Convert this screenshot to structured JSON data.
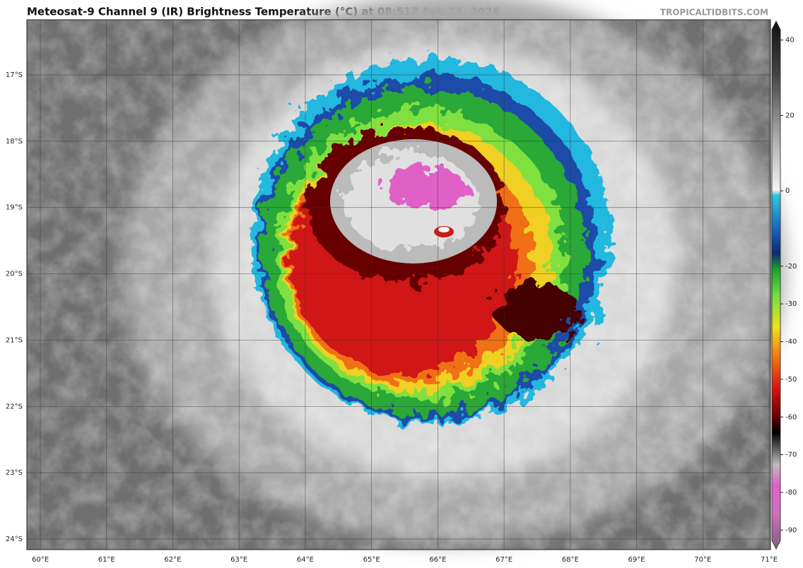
{
  "title": "Meteosat-9 Channel 9 (IR) Brightness Temperature (°C) at 08:51Z Feb 23, 2026",
  "source": "TROPICALTIDBITS.COM",
  "map": {
    "lon_ticks": [
      {
        "value": 60,
        "label": "60°E"
      },
      {
        "value": 61,
        "label": "61°E"
      },
      {
        "value": 62,
        "label": "62°E"
      },
      {
        "value": 63,
        "label": "63°E"
      },
      {
        "value": 64,
        "label": "64°E"
      },
      {
        "value": 65,
        "label": "65°E"
      },
      {
        "value": 66,
        "label": "66°E"
      },
      {
        "value": 67,
        "label": "67°E"
      },
      {
        "value": 68,
        "label": "68°E"
      },
      {
        "value": 69,
        "label": "69°E"
      },
      {
        "value": 70,
        "label": "70°E"
      },
      {
        "value": 71,
        "label": "71°E"
      }
    ],
    "lat_ticks": [
      {
        "value": -17,
        "label": "17°S"
      },
      {
        "value": -18,
        "label": "18°S"
      },
      {
        "value": -19,
        "label": "19°S"
      },
      {
        "value": -20,
        "label": "20°S"
      },
      {
        "value": -21,
        "label": "21°S"
      },
      {
        "value": -22,
        "label": "22°S"
      },
      {
        "value": -23,
        "label": "23°S"
      },
      {
        "value": -24,
        "label": "24°S"
      }
    ]
  },
  "colorbar": {
    "range": [
      -95,
      45
    ],
    "ticks": [
      40,
      20,
      0,
      -20,
      -30,
      -40,
      -50,
      -60,
      -70,
      -80,
      -90
    ]
  }
}
